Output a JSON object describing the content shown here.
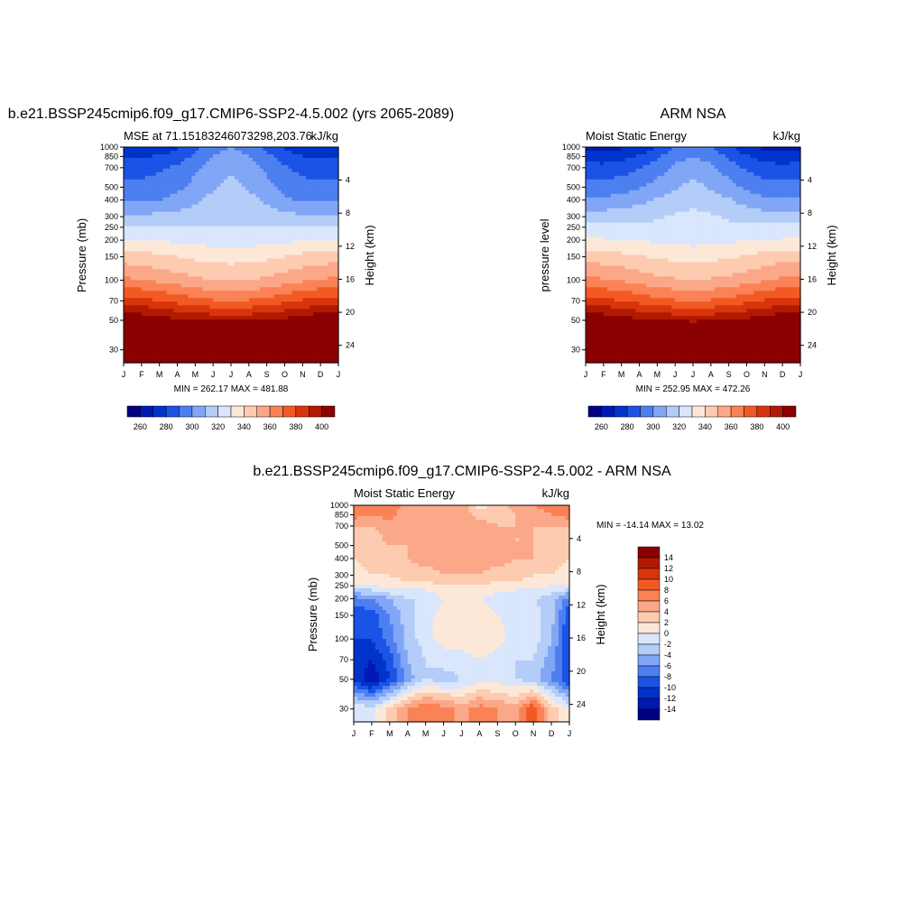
{
  "colors": {
    "palette": [
      "#000080",
      "#0019b3",
      "#0033cc",
      "#1a53e6",
      "#4d7ff0",
      "#80a6f5",
      "#b3ccf8",
      "#d9e6fb",
      "#fde8d8",
      "#fccbb0",
      "#fba888",
      "#fa8255",
      "#f25a25",
      "#d9340b",
      "#b01a00",
      "#8b0000"
    ]
  },
  "chart_data": [
    {
      "type": "heatmap",
      "title": "b.e21.BSSP245cmip6.f09_g17.CMIP6-SSP2-4.5.002 (yrs 2065-2089)",
      "subtitle_left": "MSE at 71.15183246073298,203.76",
      "subtitle_right": "kJ/kg",
      "ylabel": "Pressure (mb)",
      "ylabel_right": "Height (km)",
      "x": [
        "J",
        "F",
        "M",
        "A",
        "M",
        "J",
        "J",
        "A",
        "S",
        "O",
        "N",
        "D",
        "J"
      ],
      "y_pressure": [
        30,
        50,
        70,
        100,
        150,
        200,
        250,
        300,
        400,
        500,
        700,
        850,
        1000
      ],
      "y_height": [
        24,
        20,
        16,
        12,
        8,
        4
      ],
      "stats": "MIN = 262.17 MAX = 481.88",
      "colorbar_ticks": [
        "260",
        "280",
        "300",
        "320",
        "340",
        "360",
        "380",
        "400"
      ],
      "surface_min": 262,
      "levels": [
        250,
        260,
        270,
        280,
        290,
        300,
        310,
        320,
        330,
        340,
        350,
        360,
        370,
        380,
        390,
        400
      ],
      "z": [
        [
          481,
          481,
          481,
          481,
          481,
          481,
          481,
          481,
          481,
          481,
          481,
          481,
          481
        ],
        [
          410,
          408,
          405,
          402,
          400,
          398,
          397,
          398,
          400,
          403,
          406,
          409,
          410
        ],
        [
          385,
          383,
          380,
          377,
          373,
          371,
          370,
          371,
          373,
          377,
          381,
          384,
          385
        ],
        [
          362,
          360,
          358,
          355,
          352,
          350,
          349,
          350,
          352,
          355,
          358,
          361,
          362
        ],
        [
          345,
          344,
          342,
          340,
          338,
          336,
          336,
          336,
          338,
          340,
          343,
          345,
          345
        ],
        [
          330,
          330,
          329,
          328,
          327,
          326,
          325,
          326,
          327,
          328,
          329,
          330,
          330
        ],
        [
          320,
          320,
          320,
          320,
          320,
          320,
          320,
          320,
          320,
          320,
          320,
          320,
          320
        ],
        [
          312,
          312,
          313,
          314,
          316,
          318,
          320,
          318,
          316,
          313,
          312,
          312,
          312
        ],
        [
          298,
          298,
          300,
          303,
          308,
          313,
          316,
          313,
          308,
          302,
          298,
          298,
          298
        ],
        [
          293,
          293,
          295,
          298,
          303,
          309,
          313,
          309,
          303,
          297,
          293,
          293,
          293
        ],
        [
          286,
          286,
          288,
          292,
          298,
          305,
          309,
          305,
          298,
          291,
          287,
          286,
          286
        ],
        [
          280,
          279,
          281,
          285,
          292,
          300,
          304,
          300,
          293,
          285,
          280,
          278,
          280
        ],
        [
          272,
          271,
          273,
          278,
          287,
          296,
          300,
          296,
          288,
          278,
          272,
          270,
          272
        ]
      ]
    },
    {
      "type": "heatmap",
      "title": "ARM NSA",
      "subtitle_left": "Moist Static Energy",
      "subtitle_right": "kJ/kg",
      "ylabel": "pressure level",
      "ylabel_right": "Height (km)",
      "x": [
        "J",
        "F",
        "M",
        "A",
        "M",
        "J",
        "J",
        "A",
        "S",
        "O",
        "N",
        "D",
        "J"
      ],
      "y_pressure": [
        30,
        50,
        70,
        100,
        150,
        200,
        250,
        300,
        400,
        500,
        700,
        850,
        1000
      ],
      "y_height": [
        24,
        20,
        16,
        12,
        8,
        4
      ],
      "stats": "MIN = 252.95 MAX = 472.26",
      "colorbar_ticks": [
        "260",
        "280",
        "300",
        "320",
        "340",
        "360",
        "380",
        "400"
      ],
      "surface_min": 252,
      "levels": [
        250,
        260,
        270,
        280,
        290,
        300,
        310,
        320,
        330,
        340,
        350,
        360,
        370,
        380,
        390,
        400
      ],
      "z": [
        [
          472,
          472,
          472,
          472,
          472,
          472,
          472,
          472,
          472,
          472,
          472,
          472,
          472
        ],
        [
          410,
          408,
          405,
          402,
          400,
          398,
          397,
          398,
          400,
          403,
          406,
          409,
          410
        ],
        [
          385,
          383,
          380,
          377,
          373,
          371,
          370,
          371,
          373,
          377,
          381,
          384,
          385
        ],
        [
          363,
          361,
          359,
          356,
          353,
          351,
          350,
          351,
          353,
          356,
          359,
          362,
          363
        ],
        [
          346,
          345,
          343,
          341,
          339,
          337,
          337,
          337,
          339,
          341,
          344,
          346,
          346
        ],
        [
          331,
          331,
          330,
          329,
          328,
          327,
          326,
          327,
          328,
          329,
          330,
          331,
          331
        ],
        [
          322,
          322,
          322,
          322,
          322,
          322,
          322,
          322,
          322,
          322,
          322,
          322,
          322
        ],
        [
          315,
          315,
          316,
          317,
          319,
          321,
          322,
          321,
          319,
          316,
          315,
          315,
          315
        ],
        [
          302,
          302,
          304,
          307,
          311,
          315,
          318,
          315,
          311,
          306,
          302,
          302,
          302
        ],
        [
          294,
          294,
          296,
          299,
          304,
          309,
          313,
          309,
          304,
          298,
          294,
          294,
          294
        ],
        [
          284,
          283,
          285,
          289,
          295,
          302,
          306,
          302,
          295,
          288,
          284,
          283,
          284
        ],
        [
          276,
          275,
          277,
          281,
          288,
          296,
          300,
          296,
          289,
          281,
          276,
          274,
          276
        ],
        [
          268,
          267,
          268,
          272,
          280,
          290,
          295,
          290,
          282,
          272,
          267,
          265,
          268
        ]
      ]
    },
    {
      "type": "heatmap",
      "title": "b.e21.BSSP245cmip6.f09_g17.CMIP6-SSP2-4.5.002 - ARM NSA",
      "subtitle_left": "Moist Static Energy",
      "subtitle_right": "kJ/kg",
      "ylabel": "Pressure (mb)",
      "ylabel_right": "Height (km)",
      "x": [
        "J",
        "F",
        "M",
        "A",
        "M",
        "J",
        "J",
        "A",
        "S",
        "O",
        "N",
        "D",
        "J"
      ],
      "y_pressure": [
        30,
        50,
        70,
        100,
        150,
        200,
        250,
        300,
        400,
        500,
        700,
        850,
        1000
      ],
      "y_height": [
        24,
        20,
        16,
        12,
        8,
        4
      ],
      "stats": "MIN = -14.14 MAX =  13.02",
      "colorbar_ticks": [
        "14",
        "12",
        "10",
        "8",
        "6",
        "4",
        "2",
        "0",
        "-2",
        "-4",
        "-6",
        "-8",
        "-10",
        "-12",
        "-14"
      ],
      "levels": [
        -16,
        -14,
        -12,
        -10,
        -8,
        -6,
        -4,
        -2,
        0,
        2,
        4,
        6,
        8,
        10,
        12,
        14
      ],
      "z": [
        [
          0,
          -1,
          3,
          6,
          8,
          7,
          5,
          7,
          6,
          5,
          10,
          3,
          0
        ],
        [
          -10,
          -14,
          -10,
          -5,
          -2,
          -3,
          -2,
          -1,
          -1,
          -2,
          -3,
          -6,
          -10
        ],
        [
          -10,
          -12,
          -9,
          -4,
          -2,
          -1,
          -1,
          0,
          -1,
          -2,
          -2,
          -5,
          -10
        ],
        [
          -10,
          -10,
          -7,
          -3,
          -1,
          1,
          1,
          2,
          1,
          -1,
          -1,
          -4,
          -10
        ],
        [
          -10,
          -9,
          -6,
          -3,
          -1,
          1,
          1,
          1,
          0,
          -1,
          -1,
          -3,
          -10
        ],
        [
          -7,
          -6,
          -4,
          -2,
          -2,
          0,
          1,
          0,
          -1,
          -2,
          -2,
          -3,
          -7
        ],
        [
          0,
          0,
          1,
          1,
          1,
          2,
          2,
          2,
          1,
          1,
          1,
          0,
          0
        ],
        [
          1,
          2,
          2,
          3,
          3,
          4,
          4,
          4,
          3,
          3,
          2,
          2,
          1
        ],
        [
          2,
          3,
          3,
          4,
          5,
          5,
          5,
          5,
          5,
          4,
          4,
          3,
          2
        ],
        [
          3,
          3,
          4,
          4,
          5,
          5,
          5,
          5,
          4,
          4,
          4,
          3,
          3
        ],
        [
          4,
          4,
          5,
          4,
          5,
          5,
          5,
          5,
          4,
          4,
          4,
          4,
          4
        ],
        [
          7,
          6,
          7,
          4,
          5,
          6,
          6,
          3,
          3,
          4,
          5,
          6,
          7
        ],
        [
          8,
          7,
          8,
          5,
          6,
          5,
          5,
          1,
          3,
          5,
          6,
          7,
          8
        ]
      ]
    }
  ]
}
